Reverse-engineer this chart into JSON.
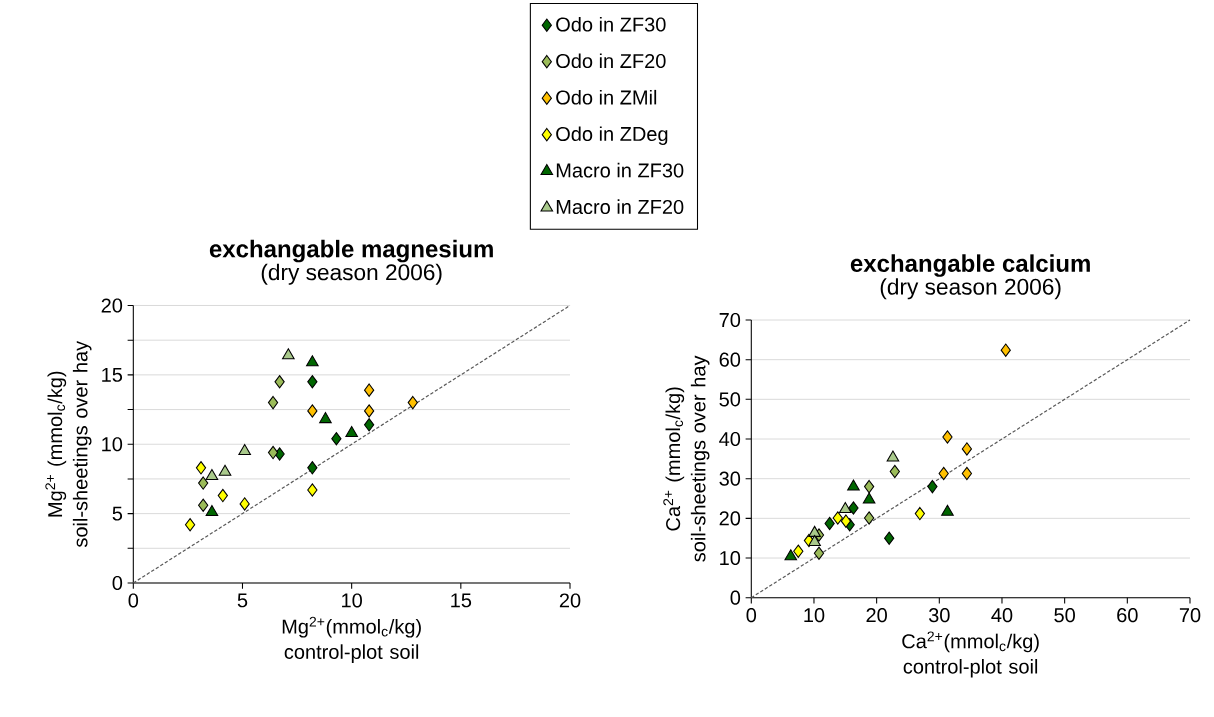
{
  "chart_data": [
    {
      "type": "scatter",
      "title": "exchangable magnesium",
      "subtitle": "(dry season 2006)",
      "xlabel": "Mg$^{2+}$(mmol$_{c}$/kg) control-plot soil",
      "ylabel": "Mg$^{2+}$ (mmol$_{c}$/kg) soil-sheetings over hay",
      "xlim": [
        0,
        20
      ],
      "ylim": [
        0,
        20
      ],
      "xticks": [
        0,
        5,
        10,
        15,
        20
      ],
      "yticks": [
        0,
        {
          "value": 2.5,
          "label": null
        },
        5,
        {
          "value": 7.5,
          "label": null
        },
        10,
        {
          "value": 12.5,
          "label": null
        },
        15,
        {
          "value": 17.5,
          "label": null
        },
        20
      ],
      "grid": "y",
      "legend": "top right",
      "series": [
        {
          "name": "Odo in ZF30",
          "color": "#006600",
          "marker": "diamond",
          "x": [
            8.2,
            8.2,
            9.3,
            10.8,
            6.7
          ],
          "values": [
            14.5,
            8.3,
            10.4,
            11.4,
            9.3
          ]
        },
        {
          "name": "Odo in ZF20",
          "color": "#9bbb59",
          "marker": "diamond",
          "x": [
            6.7,
            6.4,
            6.4,
            3.2,
            3.2
          ],
          "values": [
            14.5,
            13.0,
            9.4,
            7.2,
            5.6
          ]
        },
        {
          "name": "Odo in ZMil",
          "color": "#ffc000",
          "marker": "diamond",
          "x": [
            10.8,
            8.2,
            10.8,
            12.8
          ],
          "values": [
            13.9,
            12.4,
            12.4,
            13.0
          ]
        },
        {
          "name": "Odo in ZDeg",
          "color": "#ffff00",
          "marker": "diamond",
          "x": [
            3.1,
            4.1,
            5.1,
            2.6,
            8.2
          ],
          "values": [
            8.3,
            6.3,
            5.7,
            4.2,
            6.7
          ]
        },
        {
          "name": "Macro in ZF30",
          "color": "#006600",
          "marker": "triangle",
          "x": [
            8.2,
            8.8,
            10.0,
            3.6
          ],
          "values": [
            15.9,
            11.8,
            10.8,
            5.1
          ]
        },
        {
          "name": "Macro in ZF20",
          "color": "#a9c98b",
          "marker": "triangle",
          "x": [
            7.1,
            5.1,
            3.6,
            4.2
          ],
          "values": [
            16.4,
            9.5,
            7.7,
            8.0
          ]
        },
        {
          "type": "line",
          "color": "#595959",
          "line_style": "dashed",
          "x": [
            0,
            20
          ],
          "values": [
            0,
            20
          ]
        }
      ]
    },
    {
      "type": "scatter",
      "title": "exchangable calcium",
      "subtitle": "(dry season 2006)",
      "xlabel": "Ca$^{2+}$(mmol$_{c}$/kg) control-plot soil",
      "ylabel": "Ca$^{2+}$ (mmol$_{c}$/kg) soil-sheetings over hay",
      "xlim": [
        0,
        70
      ],
      "ylim": [
        0,
        70
      ],
      "xticks": [
        0,
        10,
        20,
        30,
        40,
        50,
        60,
        70
      ],
      "yticks": [
        0,
        10,
        20,
        30,
        40,
        50,
        60,
        70
      ],
      "grid": "y",
      "series": [
        {
          "color": "#006600",
          "marker": "diamond",
          "x": [
            28.9,
            22.0,
            16.3,
            12.5,
            15.7
          ],
          "values": [
            28.0,
            15.0,
            22.6,
            18.7,
            18.4
          ]
        },
        {
          "color": "#9bbb59",
          "marker": "diamond",
          "x": [
            18.8,
            22.9,
            18.8,
            10.8,
            10.8
          ],
          "values": [
            28.0,
            31.8,
            20.1,
            11.2,
            15.8
          ]
        },
        {
          "color": "#ffc000",
          "marker": "diamond",
          "x": [
            31.3,
            34.4,
            30.7,
            34.4,
            40.6
          ],
          "values": [
            40.5,
            37.5,
            31.3,
            31.3,
            62.4
          ]
        },
        {
          "color": "#ffff00",
          "marker": "diamond",
          "x": [
            7.5,
            13.8,
            15.1,
            26.9,
            9.2
          ],
          "values": [
            11.7,
            20.1,
            19.3,
            21.2,
            14.4
          ]
        },
        {
          "color": "#006600",
          "marker": "triangle",
          "x": [
            6.3,
            16.3,
            18.8,
            31.3
          ],
          "values": [
            10.4,
            28.0,
            24.7,
            21.6
          ]
        },
        {
          "color": "#a9c98b",
          "marker": "triangle",
          "x": [
            22.6,
            15.0,
            10.1,
            10.1
          ],
          "values": [
            35.3,
            22.3,
            16.3,
            14.0
          ]
        },
        {
          "type": "line",
          "color": "#595959",
          "line_style": "dashed",
          "x": [
            0,
            70
          ],
          "values": [
            0,
            70
          ]
        }
      ]
    }
  ]
}
